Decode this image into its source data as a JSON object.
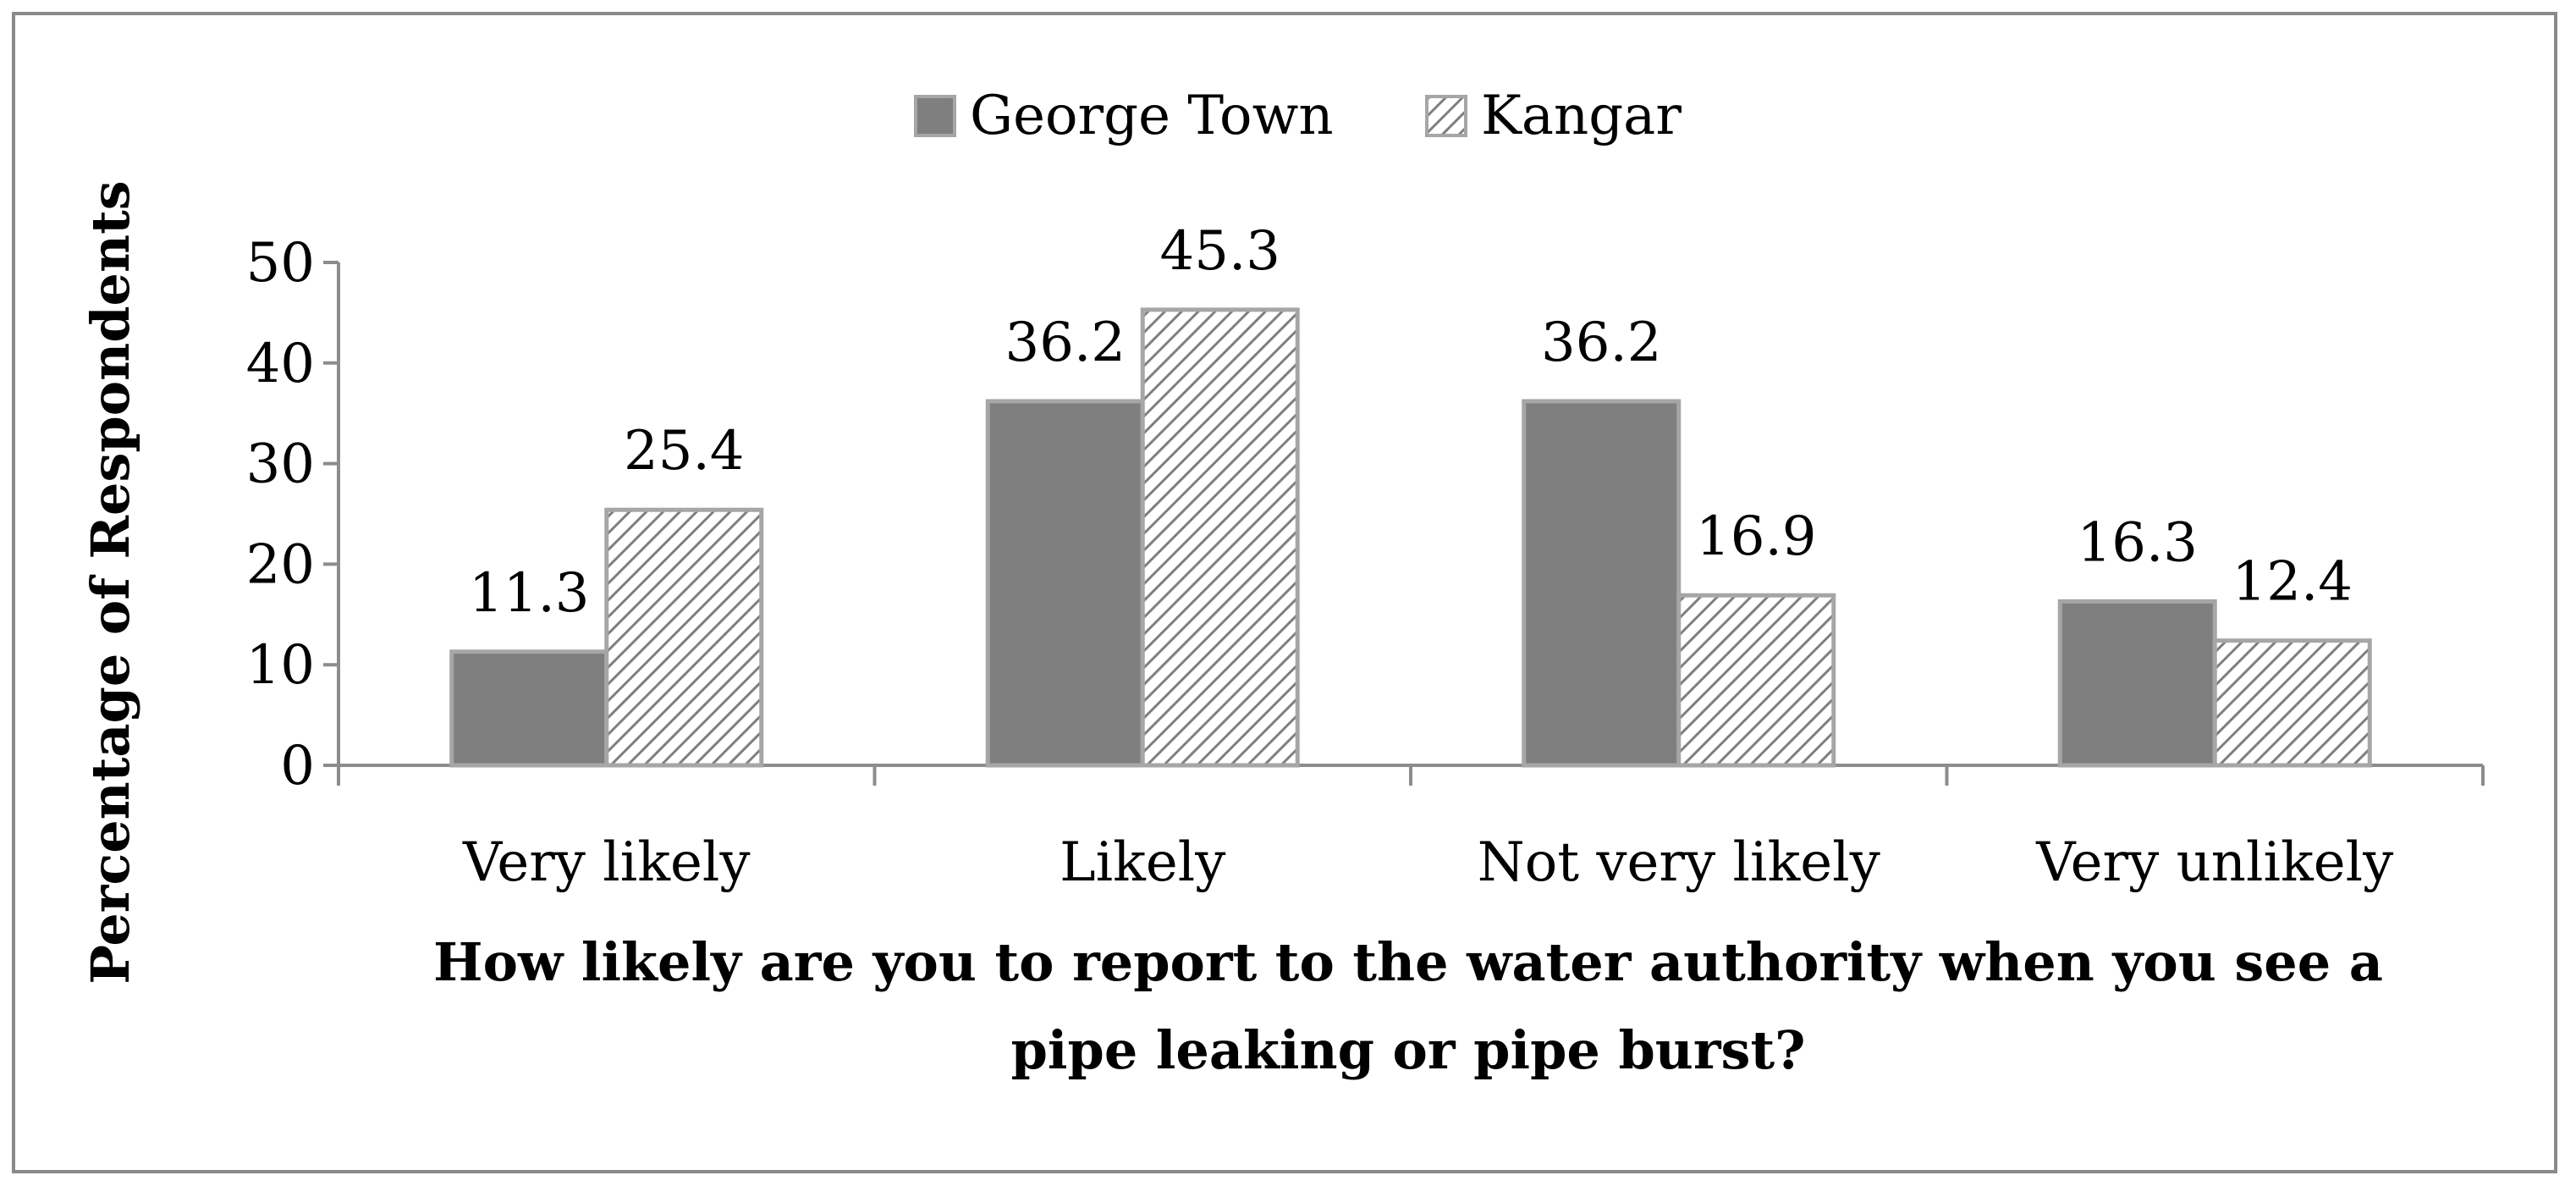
{
  "chart_data": {
    "type": "bar",
    "categories": [
      "Very likely",
      "Likely",
      "Not very likely",
      "Very unlikely"
    ],
    "series": [
      {
        "name": "George Town",
        "values": [
          11.3,
          36.2,
          36.2,
          16.3
        ],
        "color": "#7f7f7f",
        "pattern": "solid"
      },
      {
        "name": "Kangar",
        "values": [
          25.4,
          45.3,
          16.9,
          12.4
        ],
        "color": "#ffffff",
        "pattern": "diagonal-hatch"
      }
    ],
    "data_labels": [
      [
        "11.3",
        "36.2",
        "36.2",
        "16.3"
      ],
      [
        "25.4",
        "45.3",
        "16.9",
        "12.4"
      ]
    ],
    "title": "",
    "xlabel_lines": [
      "How likely are you to report to the water authority when you see a",
      "pipe leaking or pipe burst?"
    ],
    "ylabel": "Percentage of Respondents",
    "ylim": [
      0,
      50
    ],
    "yticks": [
      0,
      10,
      20,
      30,
      40,
      50
    ],
    "ytick_labels": [
      "0",
      "10",
      "20",
      "30",
      "40",
      "50"
    ],
    "grid": false,
    "legend_position": "top-center",
    "colors": {
      "george_town_fill": "#7f7f7f",
      "kangar_hatch": "#7f7f7f",
      "bar_border": "#a6a6a6",
      "axis": "#8c8c8c",
      "frame": "#8a8a8a"
    }
  }
}
